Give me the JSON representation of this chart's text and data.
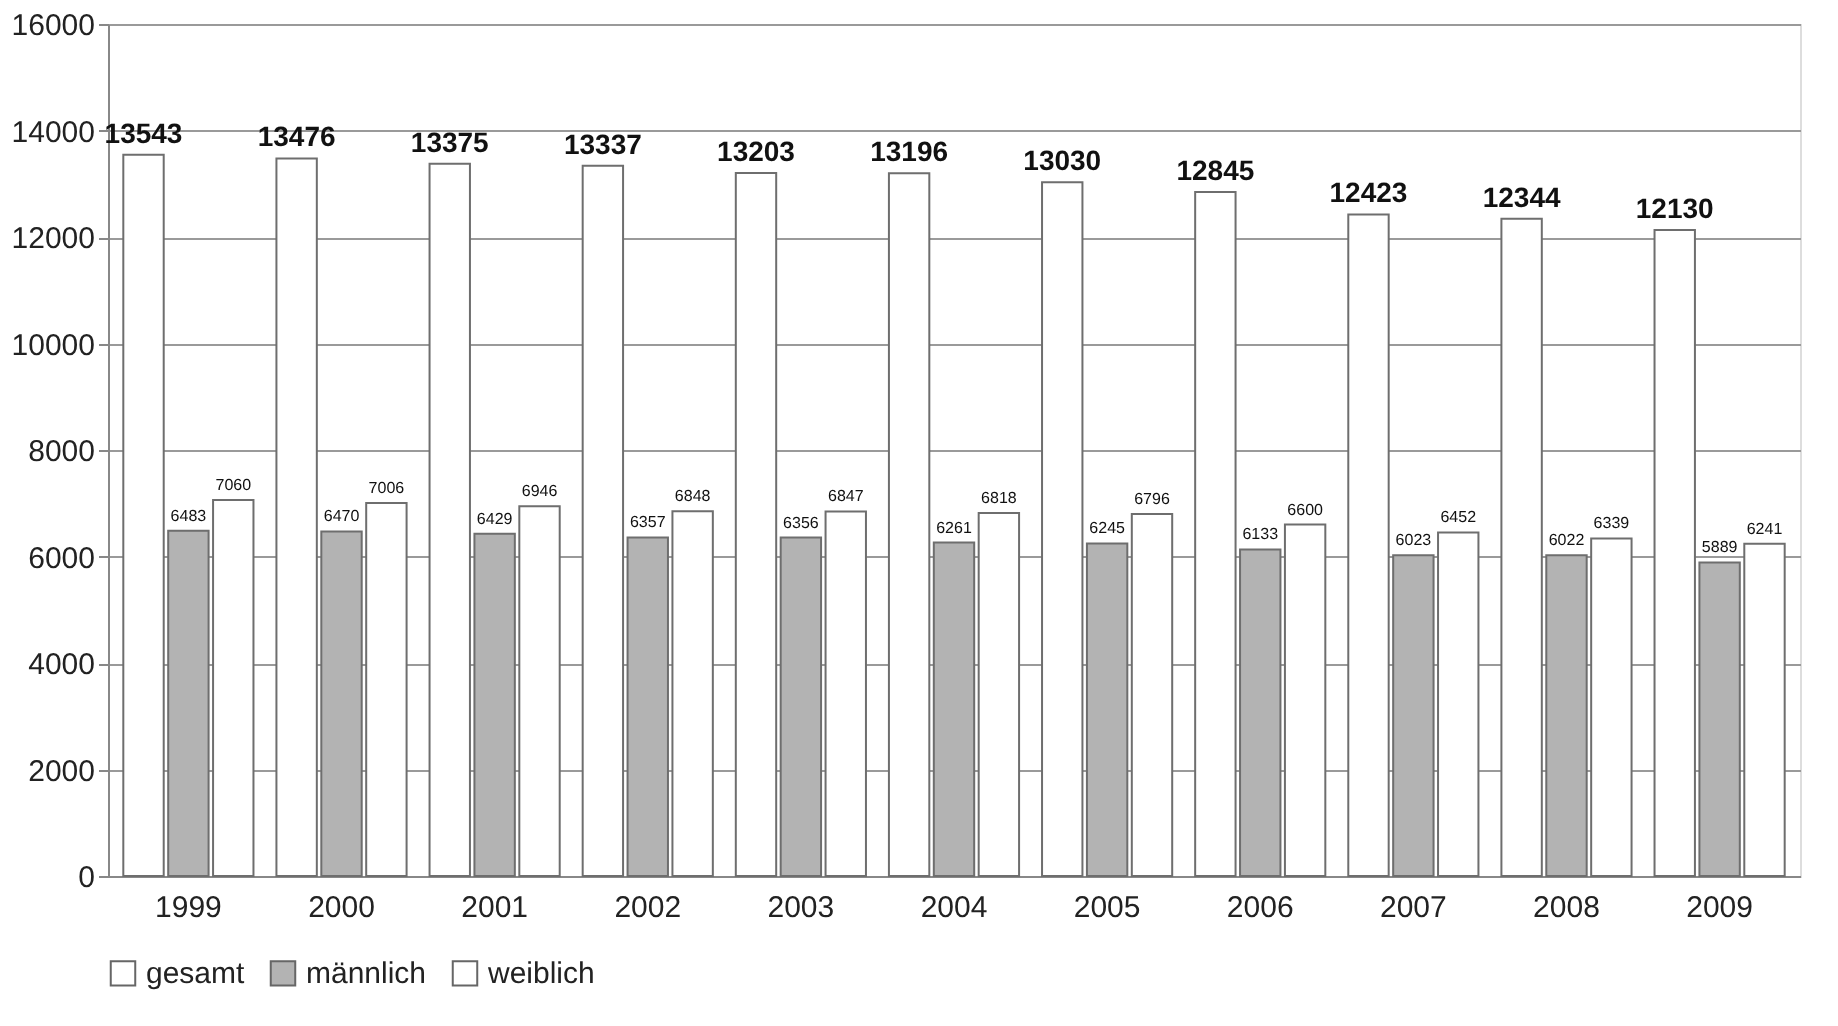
{
  "chart_data": {
    "type": "bar",
    "categories": [
      "1999",
      "2000",
      "2001",
      "2002",
      "2003",
      "2004",
      "2005",
      "2006",
      "2007",
      "2008",
      "2009"
    ],
    "series": [
      {
        "name": "gesamt",
        "color": "#ffffff",
        "values": [
          13543,
          13476,
          13375,
          13337,
          13203,
          13196,
          13030,
          12845,
          12423,
          12344,
          12130
        ]
      },
      {
        "name": "männlich",
        "color": "#b3b3b3",
        "values": [
          6483,
          6470,
          6429,
          6357,
          6356,
          6261,
          6245,
          6133,
          6023,
          6022,
          5889
        ]
      },
      {
        "name": "weiblich",
        "color": "#ffffff",
        "values": [
          7060,
          7006,
          6946,
          6848,
          6847,
          6818,
          6796,
          6600,
          6452,
          6339,
          6241
        ]
      }
    ],
    "ylim": [
      0,
      16000
    ],
    "yticks": [
      0,
      2000,
      4000,
      6000,
      8000,
      10000,
      12000,
      14000,
      16000
    ],
    "grid": "y",
    "legend": "bottom",
    "data_labels": true
  }
}
